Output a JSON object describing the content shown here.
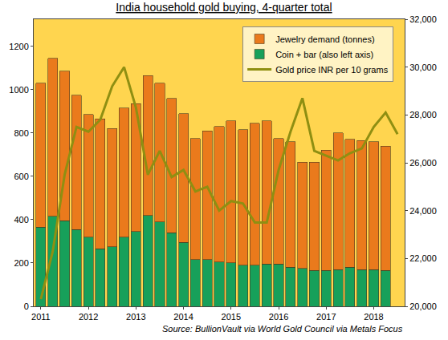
{
  "chart_data": {
    "type": "bar",
    "title": "India household gold buying, 4-quarter total",
    "source": "Source: BullionVault via World Gold Council via Metals Focus",
    "categories": [
      "2011",
      null,
      null,
      null,
      "2012",
      null,
      null,
      null,
      "2013",
      null,
      null,
      null,
      "2014",
      null,
      null,
      null,
      "2015",
      null,
      null,
      null,
      "2016",
      null,
      null,
      null,
      "2017",
      null,
      null,
      null,
      "2018",
      null,
      null
    ],
    "stacked": true,
    "grid": false,
    "legend": "top right",
    "ylim": [
      0,
      1325
    ],
    "yticks": [
      0,
      200,
      400,
      600,
      800,
      1000,
      1200
    ],
    "y2lim": [
      20000,
      32000
    ],
    "y2ticks": [
      {
        "value": 20000,
        "label": "20,000"
      },
      {
        "value": 22000,
        "label": "22,000"
      },
      {
        "value": 24000,
        "label": "24,000"
      },
      {
        "value": 26000,
        "label": "26,000"
      },
      {
        "value": 28000,
        "label": "28,000"
      },
      {
        "value": 30000,
        "label": "30,000"
      },
      {
        "value": 32000,
        "label": "32,000"
      }
    ],
    "series": [
      {
        "name": "Coin + bar (also left axis)",
        "type": "bar",
        "color": "#17a05a",
        "values": [
          365,
          415,
          395,
          355,
          320,
          265,
          275,
          320,
          345,
          420,
          390,
          340,
          295,
          215,
          215,
          205,
          200,
          190,
          190,
          195,
          195,
          180,
          175,
          165,
          165,
          170,
          180,
          170,
          170,
          165,
          null
        ]
      },
      {
        "name": "Jewelry demand (tonnes)",
        "type": "bar",
        "color": "#ea7a1c",
        "values": [
          665,
          730,
          690,
          620,
          565,
          600,
          545,
          595,
          590,
          645,
          640,
          620,
          595,
          560,
          595,
          625,
          655,
          625,
          655,
          660,
          580,
          580,
          490,
          500,
          555,
          630,
          590,
          595,
          590,
          575,
          null
        ]
      },
      {
        "name": "Gold price INR per 10 grams",
        "type": "line",
        "axis": "y2",
        "color": "#8f8f12",
        "line_style": "solid",
        "values": [
          20300,
          22300,
          25500,
          27500,
          27300,
          27800,
          29200,
          30000,
          28300,
          25500,
          26500,
          25400,
          25700,
          24800,
          25000,
          24000,
          24400,
          24300,
          23500,
          23500,
          25700,
          27300,
          28700,
          26500,
          26300,
          26100,
          26400,
          26600,
          27500,
          28100,
          27200
        ]
      }
    ]
  }
}
